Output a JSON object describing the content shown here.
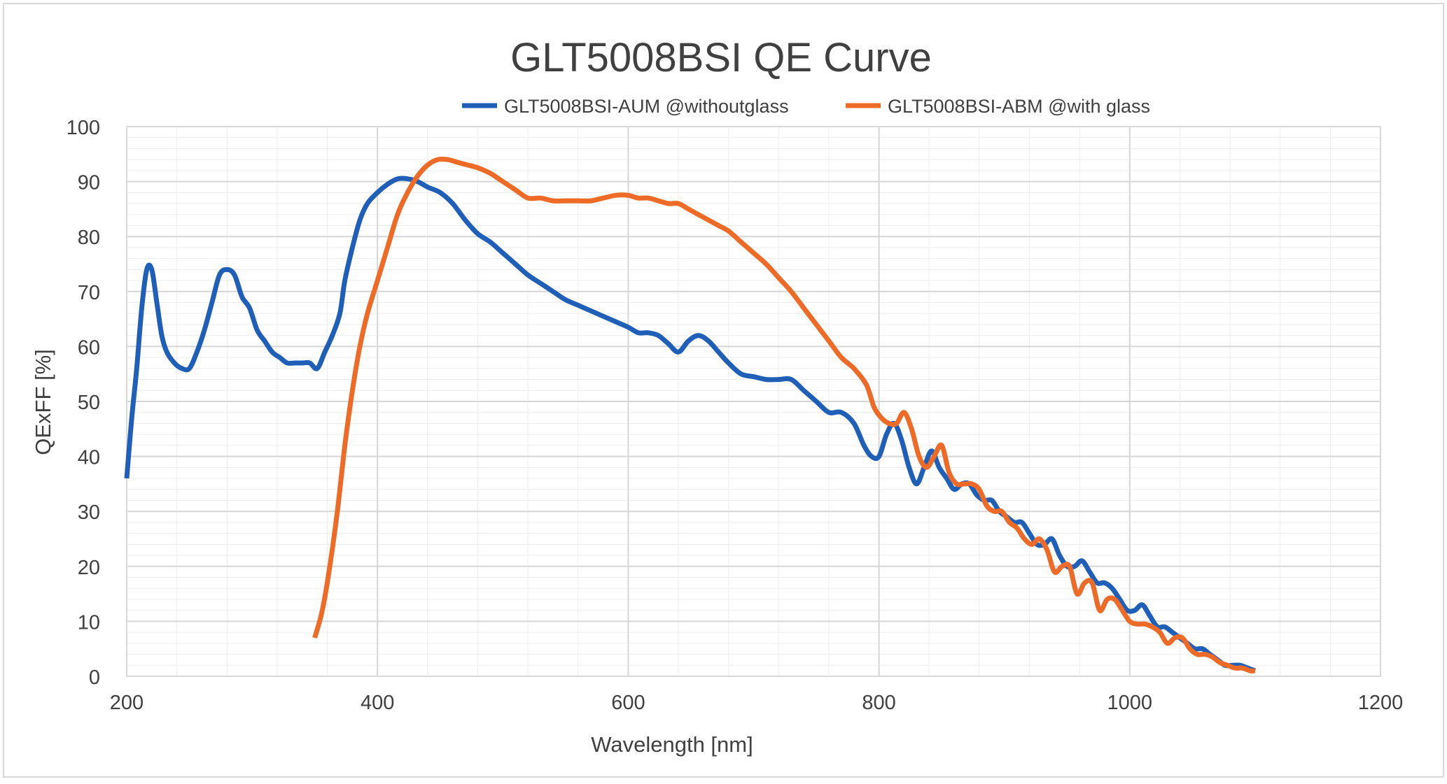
{
  "chart_data": {
    "type": "line",
    "title": "GLT5008BSI QE Curve",
    "xlabel": "Wavelength [nm]",
    "ylabel": "QExFF [%]",
    "xlim": [
      200,
      1200
    ],
    "ylim": [
      0,
      100
    ],
    "x_ticks": [
      "200",
      "400",
      "600",
      "800",
      "1000",
      "1200"
    ],
    "y_ticks": [
      "0",
      "10",
      "20",
      "30",
      "40",
      "50",
      "60",
      "70",
      "80",
      "90",
      "100"
    ],
    "grid": true,
    "legend_position": "top",
    "series": [
      {
        "name": "GLT5008BSI-AUM @withoutglass",
        "color": "#1F5FB8",
        "points": [
          [
            200,
            36
          ],
          [
            204,
            47
          ],
          [
            208,
            56
          ],
          [
            212,
            67
          ],
          [
            216,
            74
          ],
          [
            220,
            74
          ],
          [
            224,
            68
          ],
          [
            228,
            62
          ],
          [
            232,
            59
          ],
          [
            238,
            57
          ],
          [
            244,
            56
          ],
          [
            250,
            56
          ],
          [
            256,
            59
          ],
          [
            262,
            63
          ],
          [
            268,
            68
          ],
          [
            274,
            73
          ],
          [
            280,
            74
          ],
          [
            286,
            73
          ],
          [
            292,
            69
          ],
          [
            298,
            67
          ],
          [
            304,
            63
          ],
          [
            310,
            61
          ],
          [
            316,
            59
          ],
          [
            322,
            58
          ],
          [
            328,
            57
          ],
          [
            334,
            57
          ],
          [
            340,
            57
          ],
          [
            346,
            57
          ],
          [
            352,
            56
          ],
          [
            358,
            59
          ],
          [
            364,
            62
          ],
          [
            370,
            66
          ],
          [
            374,
            72
          ],
          [
            380,
            78
          ],
          [
            386,
            83
          ],
          [
            392,
            86
          ],
          [
            400,
            88
          ],
          [
            408,
            89.5
          ],
          [
            416,
            90.5
          ],
          [
            424,
            90.5
          ],
          [
            432,
            90
          ],
          [
            440,
            89
          ],
          [
            450,
            88
          ],
          [
            460,
            86
          ],
          [
            470,
            83
          ],
          [
            480,
            80.5
          ],
          [
            490,
            79
          ],
          [
            500,
            77
          ],
          [
            510,
            75
          ],
          [
            520,
            73
          ],
          [
            530,
            71.5
          ],
          [
            540,
            70
          ],
          [
            550,
            68.5
          ],
          [
            560,
            67.5
          ],
          [
            570,
            66.5
          ],
          [
            580,
            65.5
          ],
          [
            590,
            64.5
          ],
          [
            600,
            63.5
          ],
          [
            608,
            62.5
          ],
          [
            616,
            62.5
          ],
          [
            624,
            62
          ],
          [
            632,
            60.5
          ],
          [
            640,
            59
          ],
          [
            648,
            61
          ],
          [
            656,
            62
          ],
          [
            664,
            61
          ],
          [
            672,
            59
          ],
          [
            680,
            57
          ],
          [
            690,
            55
          ],
          [
            700,
            54.5
          ],
          [
            710,
            54
          ],
          [
            720,
            54
          ],
          [
            730,
            54
          ],
          [
            740,
            52
          ],
          [
            750,
            50
          ],
          [
            760,
            48
          ],
          [
            770,
            48
          ],
          [
            780,
            46
          ],
          [
            788,
            42
          ],
          [
            794,
            40
          ],
          [
            800,
            40
          ],
          [
            806,
            44
          ],
          [
            812,
            46
          ],
          [
            818,
            43
          ],
          [
            824,
            38
          ],
          [
            830,
            35
          ],
          [
            836,
            38
          ],
          [
            842,
            41
          ],
          [
            848,
            38
          ],
          [
            854,
            36
          ],
          [
            860,
            34
          ],
          [
            866,
            35
          ],
          [
            872,
            35
          ],
          [
            878,
            33
          ],
          [
            884,
            32
          ],
          [
            890,
            32
          ],
          [
            896,
            30
          ],
          [
            902,
            29
          ],
          [
            908,
            28
          ],
          [
            914,
            28
          ],
          [
            920,
            26
          ],
          [
            926,
            24
          ],
          [
            932,
            24
          ],
          [
            938,
            25
          ],
          [
            944,
            22
          ],
          [
            950,
            20
          ],
          [
            956,
            20
          ],
          [
            962,
            21
          ],
          [
            968,
            19
          ],
          [
            974,
            17
          ],
          [
            980,
            17
          ],
          [
            986,
            16
          ],
          [
            992,
            14
          ],
          [
            998,
            12
          ],
          [
            1004,
            12
          ],
          [
            1010,
            13
          ],
          [
            1016,
            11
          ],
          [
            1022,
            9
          ],
          [
            1028,
            9
          ],
          [
            1034,
            8
          ],
          [
            1040,
            7
          ],
          [
            1046,
            6
          ],
          [
            1052,
            5
          ],
          [
            1058,
            5
          ],
          [
            1064,
            4
          ],
          [
            1070,
            3
          ],
          [
            1076,
            2
          ],
          [
            1082,
            2
          ],
          [
            1088,
            2
          ],
          [
            1094,
            1.5
          ],
          [
            1100,
            1
          ]
        ]
      },
      {
        "name": "GLT5008BSI-ABM @with glass",
        "color": "#ED6A27",
        "points": [
          [
            350,
            7
          ],
          [
            356,
            12
          ],
          [
            362,
            20
          ],
          [
            368,
            30
          ],
          [
            374,
            42
          ],
          [
            380,
            52
          ],
          [
            386,
            60
          ],
          [
            392,
            66
          ],
          [
            400,
            72
          ],
          [
            408,
            78
          ],
          [
            416,
            84
          ],
          [
            424,
            88
          ],
          [
            432,
            91
          ],
          [
            440,
            93
          ],
          [
            448,
            94
          ],
          [
            456,
            94
          ],
          [
            464,
            93.5
          ],
          [
            472,
            93
          ],
          [
            480,
            92.5
          ],
          [
            490,
            91.5
          ],
          [
            500,
            90
          ],
          [
            510,
            88.5
          ],
          [
            520,
            87
          ],
          [
            530,
            87
          ],
          [
            540,
            86.5
          ],
          [
            550,
            86.5
          ],
          [
            560,
            86.5
          ],
          [
            570,
            86.5
          ],
          [
            580,
            87
          ],
          [
            590,
            87.5
          ],
          [
            600,
            87.5
          ],
          [
            608,
            87
          ],
          [
            616,
            87
          ],
          [
            624,
            86.5
          ],
          [
            632,
            86
          ],
          [
            640,
            86
          ],
          [
            648,
            85
          ],
          [
            656,
            84
          ],
          [
            664,
            83
          ],
          [
            672,
            82
          ],
          [
            680,
            81
          ],
          [
            690,
            79
          ],
          [
            700,
            77
          ],
          [
            710,
            75
          ],
          [
            720,
            72.5
          ],
          [
            730,
            70
          ],
          [
            740,
            67
          ],
          [
            750,
            64
          ],
          [
            760,
            61
          ],
          [
            770,
            58
          ],
          [
            780,
            56
          ],
          [
            790,
            53
          ],
          [
            796,
            49
          ],
          [
            802,
            47
          ],
          [
            808,
            46
          ],
          [
            814,
            46
          ],
          [
            820,
            48
          ],
          [
            826,
            45
          ],
          [
            832,
            40
          ],
          [
            838,
            38
          ],
          [
            844,
            40
          ],
          [
            850,
            42
          ],
          [
            856,
            37
          ],
          [
            862,
            35
          ],
          [
            868,
            35
          ],
          [
            874,
            35
          ],
          [
            880,
            34
          ],
          [
            886,
            31
          ],
          [
            892,
            30
          ],
          [
            898,
            30
          ],
          [
            904,
            28
          ],
          [
            910,
            27
          ],
          [
            916,
            25
          ],
          [
            922,
            24
          ],
          [
            928,
            25
          ],
          [
            934,
            23
          ],
          [
            940,
            19
          ],
          [
            946,
            20
          ],
          [
            952,
            20
          ],
          [
            958,
            15
          ],
          [
            964,
            17
          ],
          [
            970,
            17
          ],
          [
            976,
            12
          ],
          [
            982,
            14
          ],
          [
            988,
            14
          ],
          [
            994,
            12
          ],
          [
            1000,
            10
          ],
          [
            1006,
            9.5
          ],
          [
            1012,
            9.5
          ],
          [
            1018,
            9
          ],
          [
            1024,
            8
          ],
          [
            1030,
            6
          ],
          [
            1036,
            7
          ],
          [
            1042,
            7
          ],
          [
            1048,
            5
          ],
          [
            1054,
            4
          ],
          [
            1060,
            4
          ],
          [
            1066,
            3.5
          ],
          [
            1072,
            2.5
          ],
          [
            1078,
            2
          ],
          [
            1084,
            1.5
          ],
          [
            1090,
            1.5
          ],
          [
            1096,
            1
          ],
          [
            1100,
            1
          ]
        ]
      }
    ]
  }
}
